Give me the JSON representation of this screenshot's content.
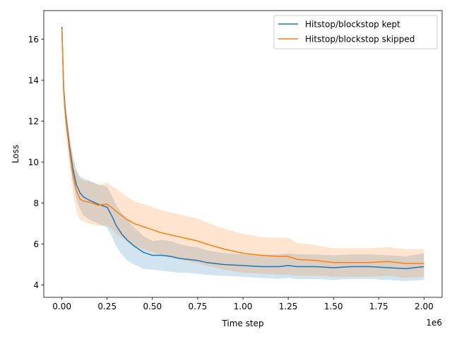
{
  "chart_data": {
    "type": "line",
    "title": "",
    "xlabel": "Time step",
    "ylabel": "Loss",
    "x_offset_label": "1e6",
    "xlim": [
      -0.1,
      2.1
    ],
    "ylim": [
      3.4,
      17.4
    ],
    "xticks": [
      0.0,
      0.25,
      0.5,
      0.75,
      1.0,
      1.25,
      1.5,
      1.75,
      2.0
    ],
    "xtick_labels": [
      "0.00",
      "0.25",
      "0.50",
      "0.75",
      "1.00",
      "1.25",
      "1.50",
      "1.75",
      "2.00"
    ],
    "yticks": [
      4,
      6,
      8,
      10,
      12,
      14,
      16
    ],
    "ytick_labels": [
      "4",
      "6",
      "8",
      "10",
      "12",
      "14",
      "16"
    ],
    "grid": false,
    "legend_position": "top-right",
    "series": [
      {
        "name": "Hitstop/blockstop kept",
        "color": "#1f77b4",
        "x": [
          0.0,
          0.01,
          0.02,
          0.04,
          0.06,
          0.08,
          0.1,
          0.12,
          0.15,
          0.2,
          0.25,
          0.28,
          0.3,
          0.33,
          0.36,
          0.4,
          0.45,
          0.5,
          0.55,
          0.6,
          0.65,
          0.7,
          0.75,
          0.8,
          0.9,
          1.0,
          1.1,
          1.2,
          1.25,
          1.3,
          1.4,
          1.5,
          1.6,
          1.7,
          1.8,
          1.9,
          2.0
        ],
        "y": [
          16.6,
          13.6,
          12.4,
          10.9,
          9.7,
          8.9,
          8.5,
          8.3,
          8.15,
          7.95,
          7.8,
          7.3,
          6.9,
          6.5,
          6.2,
          5.9,
          5.6,
          5.45,
          5.45,
          5.4,
          5.3,
          5.25,
          5.2,
          5.1,
          5.0,
          4.95,
          4.9,
          4.9,
          4.95,
          4.9,
          4.9,
          4.85,
          4.9,
          4.9,
          4.85,
          4.8,
          4.9
        ],
        "lower": [
          16.5,
          13.3,
          12.0,
          10.4,
          9.1,
          8.2,
          7.7,
          7.4,
          7.2,
          7.0,
          6.8,
          6.3,
          5.9,
          5.5,
          5.2,
          5.0,
          4.8,
          4.75,
          4.7,
          4.65,
          4.6,
          4.6,
          4.55,
          4.5,
          4.45,
          4.4,
          4.35,
          4.3,
          4.35,
          4.3,
          4.3,
          4.25,
          4.3,
          4.3,
          4.25,
          4.2,
          4.25
        ],
        "upper": [
          16.7,
          13.9,
          12.8,
          11.4,
          10.3,
          9.6,
          9.3,
          9.2,
          9.1,
          8.9,
          8.8,
          8.3,
          7.9,
          7.5,
          7.2,
          6.8,
          6.4,
          6.15,
          6.2,
          6.15,
          6.0,
          5.9,
          5.85,
          5.7,
          5.55,
          5.5,
          5.45,
          5.5,
          5.55,
          5.5,
          5.5,
          5.45,
          5.5,
          5.5,
          5.45,
          5.4,
          5.55
        ]
      },
      {
        "name": "Hitstop/blockstop skipped",
        "color": "#ff7f0e",
        "x": [
          0.0,
          0.01,
          0.02,
          0.04,
          0.06,
          0.08,
          0.1,
          0.12,
          0.15,
          0.2,
          0.25,
          0.28,
          0.3,
          0.33,
          0.36,
          0.4,
          0.45,
          0.5,
          0.55,
          0.6,
          0.65,
          0.7,
          0.75,
          0.8,
          0.9,
          1.0,
          1.1,
          1.2,
          1.25,
          1.3,
          1.4,
          1.5,
          1.6,
          1.7,
          1.8,
          1.9,
          2.0
        ],
        "y": [
          16.5,
          13.4,
          12.2,
          10.7,
          9.4,
          8.6,
          8.2,
          8.1,
          8.05,
          7.9,
          7.95,
          7.75,
          7.6,
          7.4,
          7.2,
          7.0,
          6.85,
          6.7,
          6.55,
          6.45,
          6.35,
          6.25,
          6.15,
          6.0,
          5.75,
          5.55,
          5.45,
          5.4,
          5.4,
          5.25,
          5.2,
          5.1,
          5.1,
          5.1,
          5.15,
          5.05,
          5.05
        ],
        "lower": [
          16.4,
          13.0,
          11.6,
          10.0,
          8.6,
          7.6,
          7.2,
          7.1,
          7.0,
          6.9,
          6.9,
          6.7,
          6.5,
          6.3,
          6.1,
          5.9,
          5.75,
          5.6,
          5.45,
          5.35,
          5.25,
          5.15,
          5.05,
          4.95,
          4.75,
          4.6,
          4.55,
          4.5,
          4.5,
          4.45,
          4.45,
          4.4,
          4.4,
          4.4,
          4.45,
          4.35,
          4.4
        ],
        "upper": [
          16.6,
          13.8,
          12.8,
          11.4,
          10.2,
          9.6,
          9.2,
          9.1,
          9.1,
          8.9,
          9.0,
          8.8,
          8.7,
          8.5,
          8.3,
          8.1,
          7.95,
          7.8,
          7.65,
          7.55,
          7.45,
          7.35,
          7.25,
          7.05,
          6.75,
          6.5,
          6.35,
          6.3,
          6.3,
          6.05,
          5.95,
          5.8,
          5.8,
          5.8,
          5.85,
          5.75,
          5.75
        ]
      }
    ]
  }
}
